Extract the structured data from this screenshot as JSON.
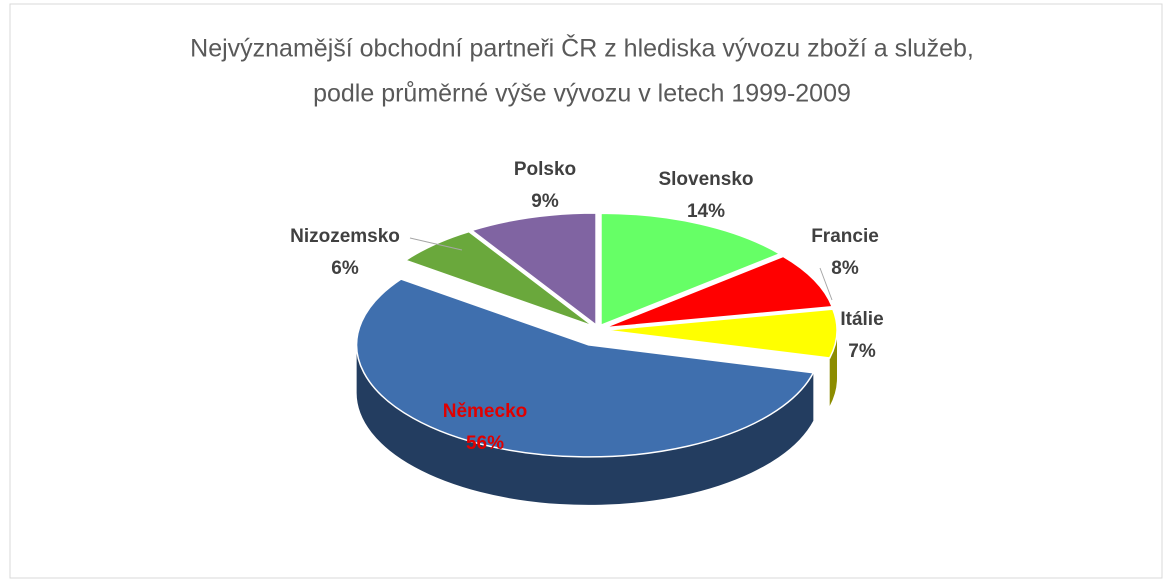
{
  "chart_data": {
    "type": "pie",
    "title": [
      "Nejvýznamější obchodní partneři ČR z hlediska vývozu zboží a služeb,",
      "podle průměrné výše vývozu v letech 1999-2009"
    ],
    "categories": [
      "Slovensko",
      "Francie",
      "Itálie",
      "Německo",
      "Nizozemsko",
      "Polsko"
    ],
    "values": [
      14,
      8,
      7,
      56,
      6,
      9
    ],
    "value_labels": [
      "14%",
      "8%",
      "7%",
      "56%",
      "6%",
      "9%"
    ],
    "colors": [
      "#66ff66",
      "#ff0000",
      "#ffff00",
      "#3f6fae",
      "#6aa83c",
      "#8064a2"
    ],
    "label_colors": [
      "#404040",
      "#404040",
      "#404040",
      "#e00000",
      "#404040",
      "#404040"
    ]
  }
}
